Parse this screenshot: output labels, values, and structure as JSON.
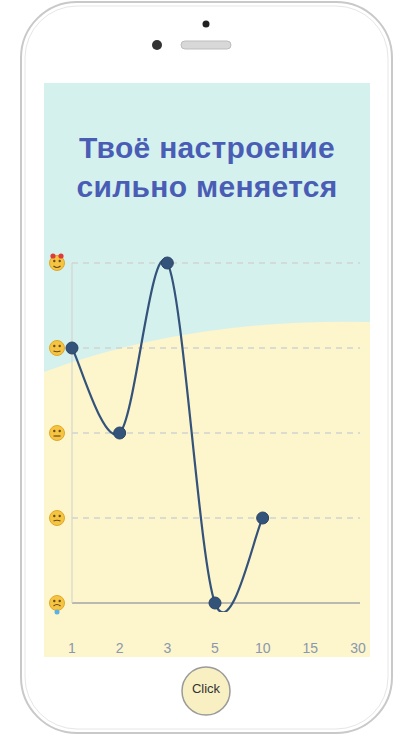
{
  "chart_data": {
    "type": "line",
    "title": "Твоё настроение сильно меняется",
    "categories": [
      "1",
      "2",
      "3",
      "5",
      "10",
      "15",
      "30"
    ],
    "values": [
      3,
      2,
      4,
      0,
      1,
      null,
      null
    ],
    "color": "#34537a",
    "ylim": [
      0,
      4
    ],
    "yticks": [
      0,
      1,
      2,
      3,
      4
    ],
    "grid": true,
    "tick_labels": "x",
    "marker": "circle",
    "line_style": "smooth"
  },
  "button": {
    "label": "Click"
  }
}
